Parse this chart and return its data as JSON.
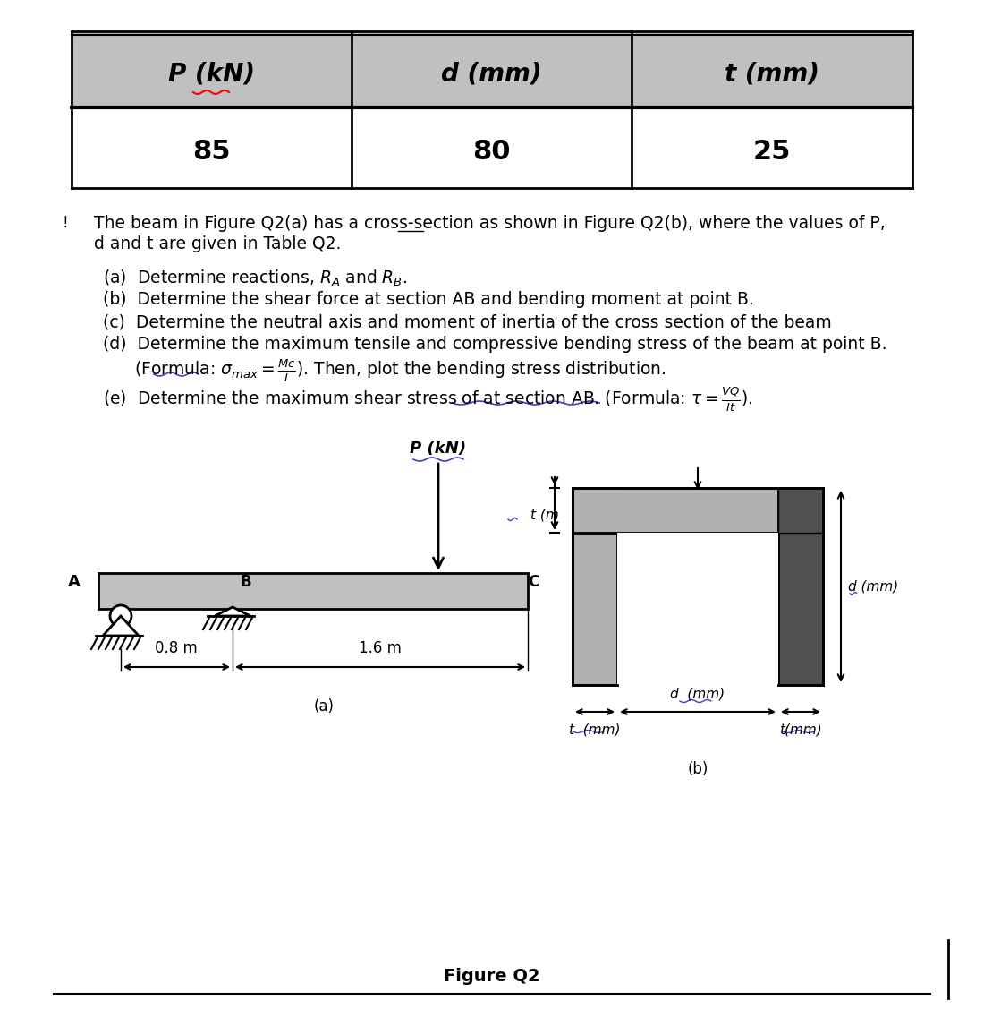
{
  "table_headers": [
    "P (kN)",
    "d (mm)",
    "t (mm)"
  ],
  "table_values": [
    "85",
    "80",
    "25"
  ],
  "header_bg": "#c0c0c0",
  "value_bg": "#ffffff",
  "table_border": "#000000",
  "text_color": "#000000",
  "beam_color": "#c0c0c0",
  "beam_dark": "#606060",
  "cross_section_light": "#b0b0b0",
  "cross_section_dark": "#505050",
  "figure_caption": "Figure Q2",
  "dim_08": "0.8 m",
  "dim_16": "1.6 m",
  "label_a": "A",
  "label_b": "B",
  "label_c": "C",
  "label_a_fig": "(a)",
  "label_b_fig": "(b)",
  "P_label": "P (kN)",
  "t_label": "t (m",
  "d_label_right": "d (mm)",
  "d_label_bottom": "d  (mm)",
  "t_label_left": "t  (mm)",
  "t_label_right": "t(mm)"
}
